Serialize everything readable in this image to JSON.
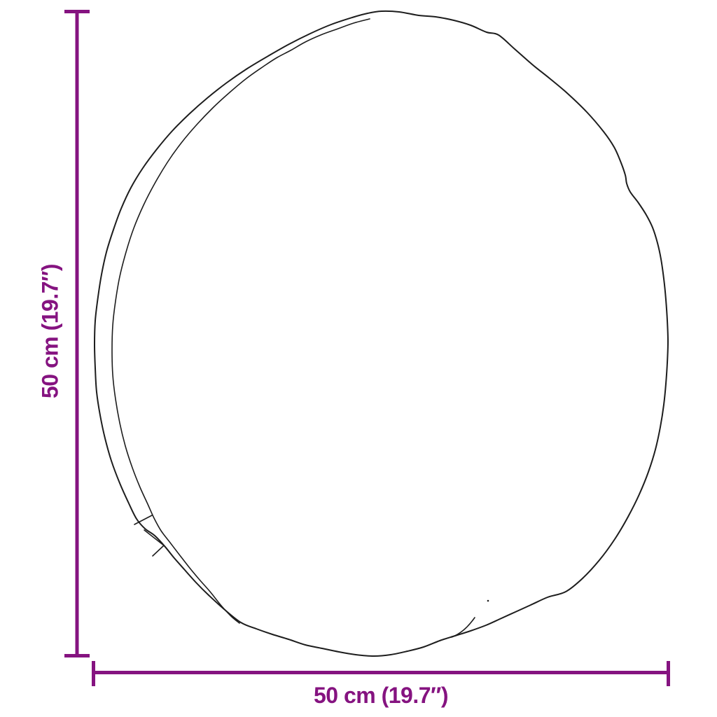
{
  "diagram": {
    "description": "Line drawing of a round cushion shown with its dimensions",
    "object_name": "round-cushion-outline",
    "height_dimension": {
      "label": "50 cm (19.7″)",
      "orientation": "vertical"
    },
    "width_dimension": {
      "label": "50 cm (19.7″)",
      "orientation": "horizontal"
    },
    "colors": {
      "dimension": "#851380",
      "outline": "#1d1d1d",
      "background": "#ffffff"
    }
  }
}
